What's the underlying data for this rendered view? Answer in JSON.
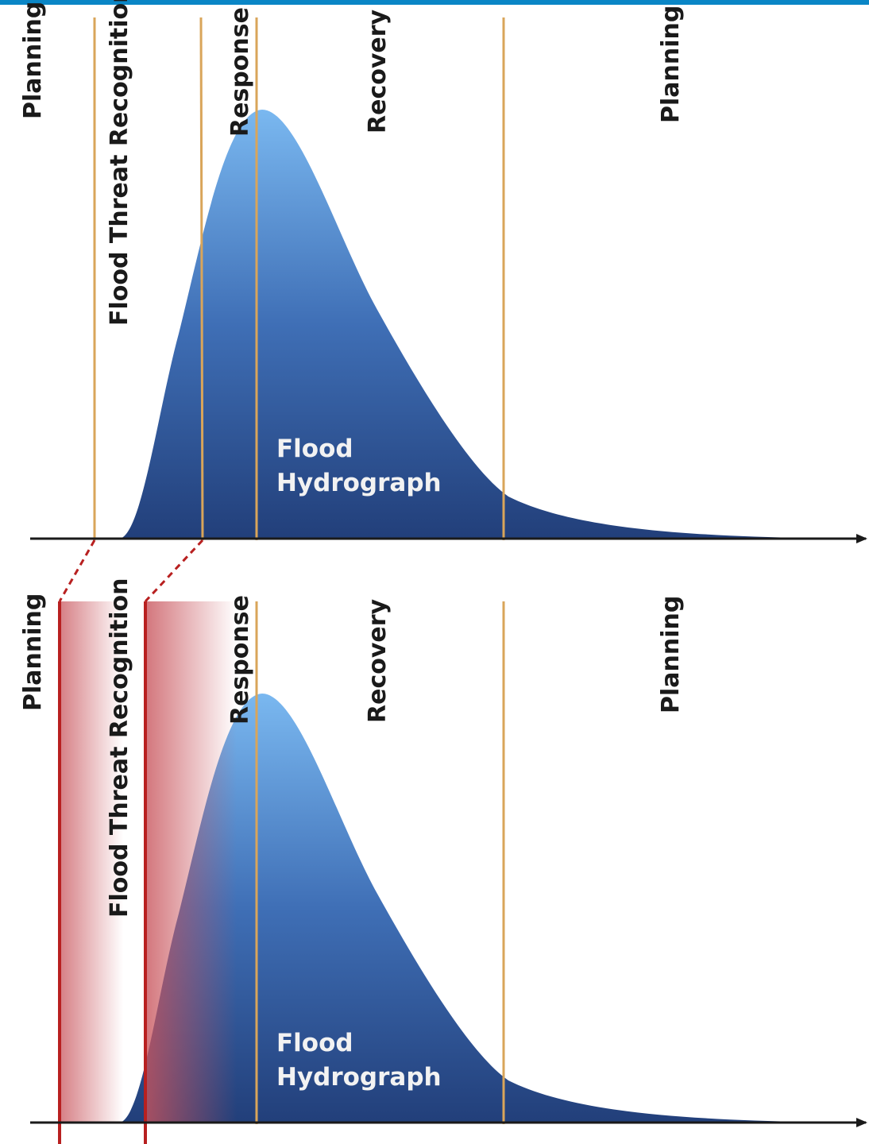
{
  "colors": {
    "top_bar": "#0a86c6",
    "phase_divider": "#d9a55a",
    "axis": "#1a1a1a",
    "hydrograph_top": "#7ab8f0",
    "hydrograph_bottom": "#223f7a",
    "warning_line": "#b82020",
    "warning_shade": "#c8535b"
  },
  "top_panel": {
    "phases": {
      "planning_before": "Planning",
      "flood_threat_recognition": "Flood Threat Recognition",
      "response": "Response",
      "recovery": "Recovery",
      "planning_after": "Planning"
    },
    "hydrograph_label": {
      "line1": "Flood",
      "line2": "Hydrograph"
    }
  },
  "bottom_panel": {
    "phases": {
      "planning_before": "Planning",
      "flood_threat_recognition": "Flood Threat Recognition",
      "response": "Response",
      "recovery": "Recovery",
      "planning_after": "Planning"
    },
    "hydrograph_label": {
      "line1": "Flood",
      "line2": "Hydrograph"
    }
  }
}
